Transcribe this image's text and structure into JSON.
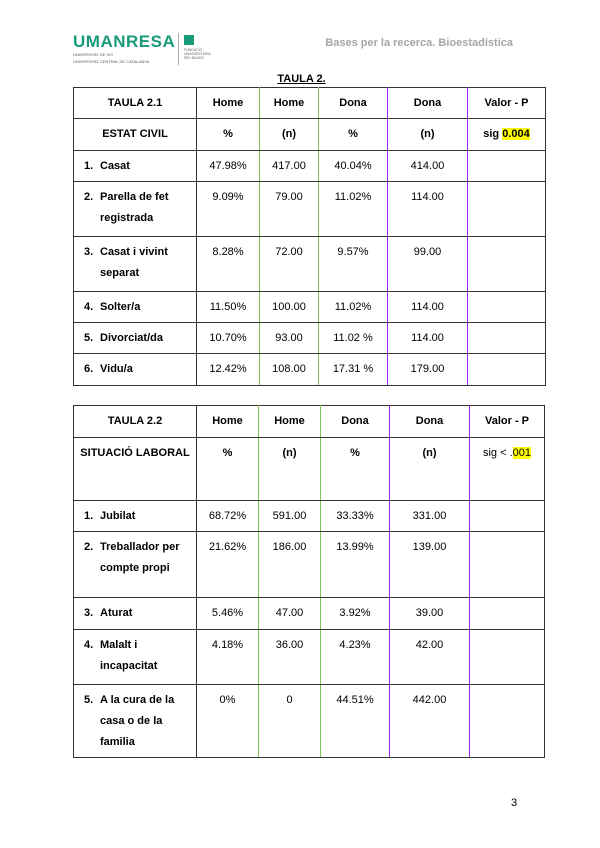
{
  "header": {
    "logo_text": "UMANRESA",
    "logo_sub": [
      "UNIVERSITAT DE VIC",
      "UNIVERSITAT CENTRAL DE CATALUNYA"
    ],
    "logo_badge_sub": "FUNDACIÓ UNIVERSITÀRIA DEL BAGES",
    "title": "Bases per la recerca. Bioestadística"
  },
  "doc_title": "TAULA 2.",
  "tables": [
    {
      "header": [
        "TAULA 2.1",
        "Home",
        "Home",
        "Dona",
        "Dona",
        "Valor - P"
      ],
      "subheader": [
        "ESTAT CIVIL",
        "%",
        "(n)",
        "%",
        "(n)"
      ],
      "sig_prefix": "sig ",
      "sig_value": "0.004",
      "sig_bold": true,
      "rows": [
        {
          "num": "1.",
          "label": "Casat",
          "values": [
            "47.98%",
            "417.00",
            "40.04%",
            "414.00"
          ]
        },
        {
          "num": "2.",
          "label": "Parella de fet registrada",
          "values": [
            "9.09%",
            "79.00",
            "11.02%",
            "114.00"
          ]
        },
        {
          "num": "3.",
          "label": "Casat i vivint separat",
          "values": [
            "8.28%",
            "72.00",
            "9.57%",
            "99.00"
          ]
        },
        {
          "num": "4.",
          "label": "Solter/a",
          "values": [
            "11.50%",
            "100.00",
            "11.02%",
            "114.00"
          ]
        },
        {
          "num": "5.",
          "label": "Divorciat/da",
          "values": [
            "10.70%",
            "93.00",
            "11.02 %",
            "114.00"
          ]
        },
        {
          "num": "6.",
          "label": "Vidu/a",
          "values": [
            "12.42%",
            "108.00",
            "17.31 %",
            "179.00"
          ]
        }
      ]
    },
    {
      "header": [
        "TAULA  2.2",
        "Home",
        "Home",
        "Dona",
        "Dona",
        "Valor - P"
      ],
      "subheader": [
        "SITUACIÓ LABORAL",
        "%",
        "(n)",
        "%",
        "(n)"
      ],
      "sig_prefix": "sig < .",
      "sig_value": "001",
      "sig_bold": false,
      "rows": [
        {
          "num": "1.",
          "label": "Jubilat",
          "values": [
            "68.72%",
            "591.00",
            "33.33%",
            "331.00"
          ]
        },
        {
          "num": "2.",
          "label": "Treballador per compte propi",
          "values": [
            "21.62%",
            "186.00",
            "13.99%",
            "139.00"
          ]
        },
        {
          "num": "3.",
          "label": "Aturat",
          "values": [
            "5.46%",
            "47.00",
            "3.92%",
            "39.00"
          ]
        },
        {
          "num": "4.",
          "label": "Malalt i incapacitat",
          "values": [
            "4.18%",
            "36.00",
            "4.23%",
            "42.00"
          ]
        },
        {
          "num": "5.",
          "label": "A la cura de la casa o de la familia",
          "values": [
            "0%",
            "0",
            "44.51%",
            "442.00"
          ]
        }
      ]
    }
  ],
  "colors": {
    "home_border": "#7cc15a",
    "dona_border": "#a020f0",
    "highlight": "#ffff00",
    "brand": "#1a9a7a"
  },
  "page_number": "3"
}
